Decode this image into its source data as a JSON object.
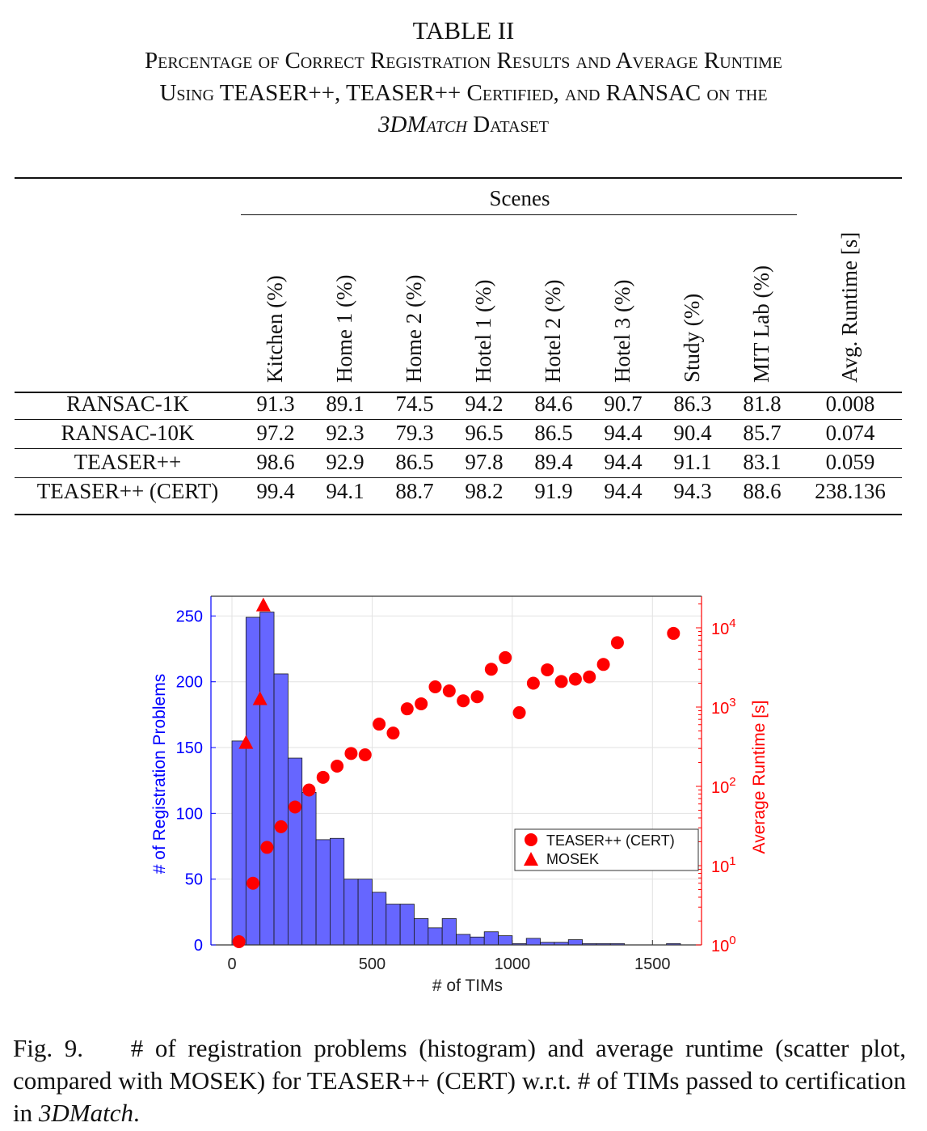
{
  "table": {
    "label": "TABLE II",
    "caption_lines": [
      "Percentage of Correct Registration Results and Average Runtime",
      "Using TEASER++, TEASER++ Certified, and RANSAC on the"
    ],
    "caption_line3_italic": "3DMatch",
    "caption_line3_rest": " Dataset",
    "group_header": "Scenes",
    "columns": [
      "Kitchen (%)",
      "Home 1 (%)",
      "Home 2 (%)",
      "Hotel 1 (%)",
      "Hotel 2 (%)",
      "Hotel 3 (%)",
      "Study (%)",
      "MIT Lab (%)",
      "Avg. Runtime [s]"
    ],
    "rows": [
      {
        "name": "RANSAC-1K",
        "values": [
          "91.3",
          "89.1",
          "74.5",
          "94.2",
          "84.6",
          "90.7",
          "86.3",
          "81.8",
          "0.008"
        ]
      },
      {
        "name": "RANSAC-10K",
        "values": [
          "97.2",
          "92.3",
          "79.3",
          "96.5",
          "86.5",
          "94.4",
          "90.4",
          "85.7",
          "0.074"
        ]
      },
      {
        "name": "TEASER++",
        "values": [
          "98.6",
          "92.9",
          "86.5",
          "97.8",
          "89.4",
          "94.4",
          "91.1",
          "83.1",
          "0.059"
        ]
      },
      {
        "name": "TEASER++ (CERT)",
        "values": [
          "99.4",
          "94.1",
          "88.7",
          "98.2",
          "91.9",
          "94.4",
          "94.3",
          "88.6",
          "238.136"
        ]
      }
    ]
  },
  "chart_data": {
    "type": "bar",
    "xlabel": "# of TIMs",
    "ylabel": "# of Registration Problems",
    "y2label": "Average Runtime [s]",
    "xlim": [
      -75,
      1675
    ],
    "xticks": [
      0,
      500,
      1000,
      1500
    ],
    "ylim": [
      0,
      265
    ],
    "yticks": [
      0,
      50,
      100,
      150,
      200,
      250
    ],
    "y2_scale": "log",
    "y2lim": [
      1,
      25000
    ],
    "y2ticks": [
      "10^0",
      "10^1",
      "10^2",
      "10^3",
      "10^4"
    ],
    "grid": true,
    "legend_position": "center-right",
    "series": [
      {
        "name": "",
        "type": "histogram",
        "color": "#6666ff",
        "bin_width": 50,
        "bin_starts": [
          0,
          50,
          100,
          150,
          200,
          250,
          300,
          350,
          400,
          450,
          500,
          550,
          600,
          650,
          700,
          750,
          800,
          850,
          900,
          950,
          1000,
          1050,
          1100,
          1150,
          1200,
          1250,
          1300,
          1350,
          1400,
          1450,
          1500,
          1550
        ],
        "counts": [
          155,
          249,
          253,
          206,
          142,
          116,
          80,
          81,
          50,
          50,
          40,
          31,
          31,
          20,
          13,
          20,
          8,
          6,
          10,
          7,
          1,
          5,
          2,
          2,
          4,
          1,
          1,
          1,
          0,
          0,
          0,
          1
        ]
      },
      {
        "name": "TEASER++ (CERT)",
        "type": "scatter",
        "marker": "circle",
        "color": "#ff0000",
        "axis": "right",
        "x": [
          25,
          75,
          125,
          175,
          225,
          275,
          325,
          375,
          425,
          475,
          525,
          575,
          625,
          675,
          725,
          775,
          825,
          875,
          925,
          975,
          1025,
          1075,
          1125,
          1175,
          1225,
          1275,
          1325,
          1375,
          1575
        ],
        "y": [
          1.1,
          6,
          17,
          31,
          55,
          90,
          130,
          180,
          260,
          250,
          610,
          470,
          950,
          1100,
          1800,
          1600,
          1200,
          1350,
          3000,
          4200,
          850,
          2000,
          2950,
          2100,
          2250,
          2400,
          3450,
          6500,
          8500
        ]
      },
      {
        "name": "MOSEK",
        "type": "scatter",
        "marker": "triangle",
        "color": "#ff0000",
        "axis": "right",
        "x": [
          50,
          100,
          112
        ],
        "y": [
          350,
          1250,
          19000
        ]
      }
    ]
  },
  "figure_caption": {
    "label": "Fig. 9.",
    "text": "# of registration problems (histogram) and average runtime (scatter plot, compared with MOSEK) for TEASER++ (CERT) w.r.t. # of TIMs passed to certification in ",
    "italic": "3DMatch",
    "end": "."
  }
}
